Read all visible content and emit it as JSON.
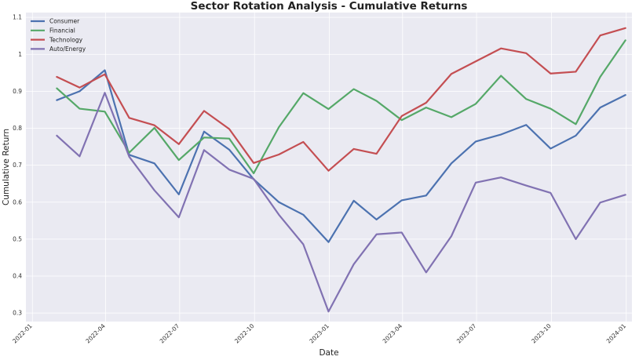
{
  "chart_data": {
    "type": "line",
    "title": "Sector Rotation Analysis - Cumulative Returns",
    "xlabel": "Date",
    "ylabel": "Cumulative Return",
    "x": [
      "2022-01-31",
      "2022-02-28",
      "2022-03-31",
      "2022-04-30",
      "2022-05-31",
      "2022-06-30",
      "2022-07-31",
      "2022-08-31",
      "2022-09-30",
      "2022-10-31",
      "2022-11-30",
      "2022-12-31",
      "2023-01-31",
      "2023-02-28",
      "2023-03-31",
      "2023-04-30",
      "2023-05-31",
      "2023-06-30",
      "2023-07-31",
      "2023-08-31",
      "2023-09-30",
      "2023-10-31",
      "2023-11-30",
      "2023-12-31"
    ],
    "x_ticks": [
      "2022-01",
      "2022-04",
      "2022-07",
      "2022-10",
      "2023-01",
      "2023-04",
      "2023-07",
      "2023-10",
      "2024-01"
    ],
    "y_ticks": [
      0.3,
      0.4,
      0.5,
      0.6,
      0.7,
      0.8,
      0.9,
      1.0,
      1.1
    ],
    "xlim": [
      "2021-12-24",
      "2024-01-08"
    ],
    "ylim": [
      0.277,
      1.113
    ],
    "grid": true,
    "legend_position": "top-left",
    "series": [
      {
        "name": "Consumer",
        "color": "#4c72b0",
        "values": [
          0.876,
          0.9,
          0.957,
          0.728,
          0.705,
          0.621,
          0.791,
          0.742,
          0.662,
          0.6,
          0.566,
          0.492,
          0.604,
          0.553,
          0.605,
          0.618,
          0.705,
          0.764,
          0.783,
          0.809,
          0.745,
          0.78,
          0.856,
          0.89
        ]
      },
      {
        "name": "Financial",
        "color": "#55a868",
        "values": [
          0.908,
          0.853,
          0.845,
          0.734,
          0.801,
          0.714,
          0.775,
          0.772,
          0.678,
          0.803,
          0.895,
          0.852,
          0.906,
          0.874,
          0.822,
          0.856,
          0.83,
          0.866,
          0.942,
          0.879,
          0.853,
          0.811,
          0.939,
          1.038
        ]
      },
      {
        "name": "Technology",
        "color": "#c44e52",
        "values": [
          0.939,
          0.91,
          0.946,
          0.828,
          0.808,
          0.757,
          0.847,
          0.798,
          0.706,
          0.729,
          0.763,
          0.685,
          0.744,
          0.731,
          0.833,
          0.869,
          0.947,
          0.981,
          1.016,
          1.003,
          0.948,
          0.953,
          1.051,
          1.071
        ]
      },
      {
        "name": "Auto/Energy",
        "color": "#8172b2",
        "values": [
          0.78,
          0.724,
          0.896,
          0.723,
          0.632,
          0.559,
          0.741,
          0.688,
          0.663,
          0.566,
          0.486,
          0.304,
          0.432,
          0.513,
          0.518,
          0.41,
          0.508,
          0.653,
          0.667,
          0.645,
          0.625,
          0.5,
          0.599,
          0.62
        ]
      }
    ]
  }
}
